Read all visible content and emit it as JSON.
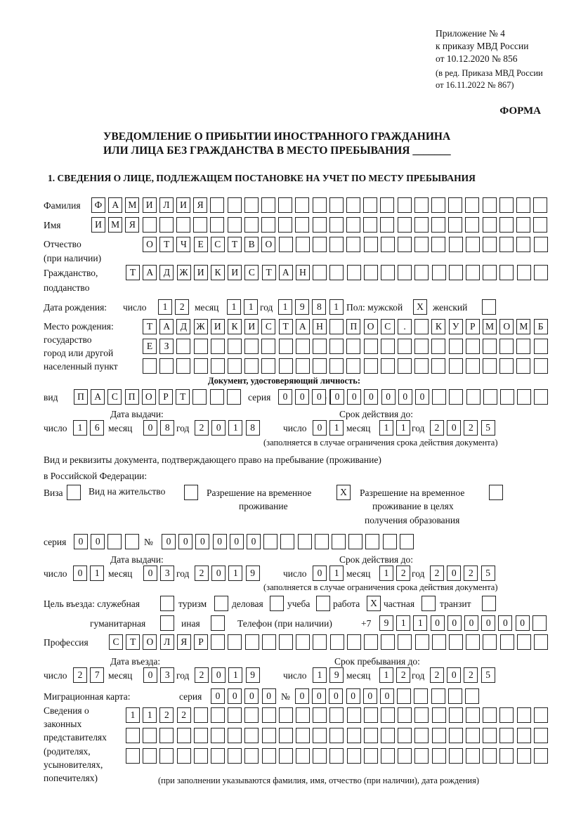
{
  "header": {
    "appendix": [
      "Приложение № 4",
      "к приказу МВД России",
      "от 10.12.2020 № 856"
    ],
    "edition": [
      "(в ред. Приказа МВД России",
      "от 16.11.2022 № 867)"
    ],
    "form_label": "ФОРМА",
    "title_line1": "УВЕДОМЛЕНИЕ О ПРИБЫТИИ ИНОСТРАННОГО ГРАЖДАНИНА",
    "title_line2": "ИЛИ ЛИЦА БЕЗ ГРАЖДАНСТВА В МЕСТО ПРЕБЫВАНИЯ _______",
    "section1": "1. СВЕДЕНИЯ О ЛИЦЕ, ПОДЛЕЖАЩЕМ ПОСТАНОВКЕ НА УЧЕТ ПО МЕСТУ ПРЕБЫВАНИЯ"
  },
  "labels": {
    "surname": "Фамилия",
    "name": "Имя",
    "patronymic": "Отчество",
    "patronymic_note": "(при наличии)",
    "citizenship": "Гражданство,",
    "citizenship2": "подданство",
    "birth_date": "Дата рождения:",
    "day": "число",
    "month": "месяц",
    "year": "год",
    "sex": "Пол: мужской",
    "female": "женский",
    "birthplace": [
      "Место рождения:",
      "государство",
      "город или другой",
      "населенный пункт"
    ],
    "id_doc": "Документ, удостоверяющий личность:",
    "kind": "вид",
    "series": "серия",
    "number": "№",
    "issue_date": "Дата выдачи:",
    "valid_until": "Срок действия до:",
    "valid_note": "(заполняется в случае ограничения срока действия документа)",
    "right_doc1": "Вид и реквизиты документа, подтверждающего право на пребывание (проживание)",
    "right_doc2": "в Российской Федерации:",
    "visa": "Виза",
    "residence": "Вид на жительство",
    "trp": [
      "Разрешение на временное",
      "проживание"
    ],
    "trp_edu": [
      "Разрешение на временное",
      "проживание в целях",
      "получения образования"
    ],
    "purpose": "Цель въезда: служебная",
    "tourism": "туризм",
    "business": "деловая",
    "study": "учеба",
    "work": "работа",
    "private": "частная",
    "transit": "транзит",
    "humanitarian": "гуманитарная",
    "other": "иная",
    "phone": "Телефон (при наличии)",
    "phone_prefix": "+7",
    "profession": "Профессия",
    "entry_date": "Дата въезда:",
    "stay_until": "Срок пребывания до:",
    "migration_card": "Миграционная карта:",
    "representatives": [
      "Сведения о",
      "законных",
      "представителях",
      "(родителях,",
      "усыновителях,",
      "попечителях)"
    ],
    "representatives_note": "(при заполнении указываются фамилия, имя, отчество (при наличии), дата рождения)"
  },
  "fields": {
    "surname": "ФАМИЛИЯ",
    "name": "ИМЯ",
    "patronymic": "ОТЧЕСТВО",
    "citizenship": "ТАДЖИКИСТАН",
    "birth_day": "12",
    "birth_month": "11",
    "birth_year": "1981",
    "sex_male": "X",
    "sex_female": "",
    "birthplace1": "ТАДЖИКИСТАН ПОС. КУРМОМБ",
    "birthplace2": "ЕЗ",
    "birthplace3": "",
    "doc_kind": "ПАСПОРТ",
    "doc_series": "0000",
    "doc_number": "000000",
    "doc_issue_day": "16",
    "doc_issue_month": "08",
    "doc_issue_year": "2018",
    "doc_valid_day": "01",
    "doc_valid_month": "11",
    "doc_valid_year": "2025",
    "visa": "",
    "residence": "",
    "trp": "X",
    "trp_edu": "",
    "right_series": "00",
    "right_number": "000000",
    "right_issue_day": "01",
    "right_issue_month": "03",
    "right_issue_year": "2019",
    "right_valid_day": "01",
    "right_valid_month": "12",
    "right_valid_year": "2025",
    "purpose_service": "",
    "purpose_tourism": "",
    "purpose_business": "",
    "purpose_study": "",
    "purpose_work": "X",
    "purpose_private": "",
    "purpose_transit": "",
    "purpose_humanitarian": "",
    "purpose_other": "",
    "phone": "911000000",
    "profession": "СТОЛЯР",
    "entry_day": "27",
    "entry_month": "03",
    "entry_year": "2019",
    "stay_day": "19",
    "stay_month": "12",
    "stay_year": "2025",
    "mc_series": "0000",
    "mc_number": "000000",
    "rep1": "1122",
    "rep2": "",
    "rep3": ""
  }
}
